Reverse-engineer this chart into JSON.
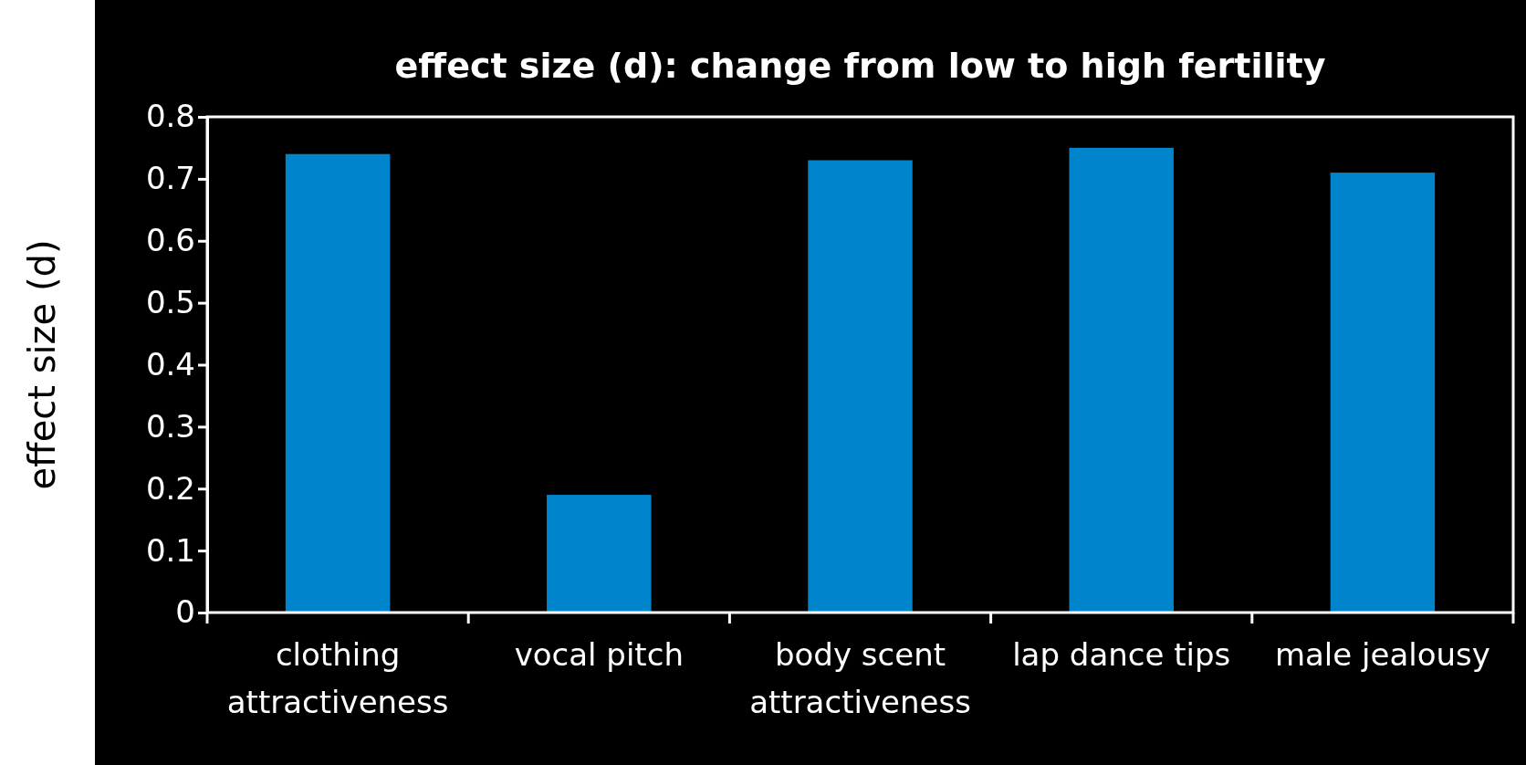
{
  "chart_data": {
    "type": "bar",
    "title": "effect size (d): change from low to high fertility",
    "ylabel": "effect size (d)",
    "categories": [
      "clothing attractiveness",
      "vocal pitch",
      "body scent attractiveness",
      "lap dance tips",
      "male jealousy"
    ],
    "values": [
      0.74,
      0.19,
      0.73,
      0.75,
      0.71
    ],
    "color": "#0084cc",
    "ylim": [
      0,
      0.8
    ],
    "yticks": [
      0,
      0.1,
      0.2,
      0.3,
      0.4,
      0.5,
      0.6,
      0.7,
      0.8
    ],
    "grid": false
  }
}
